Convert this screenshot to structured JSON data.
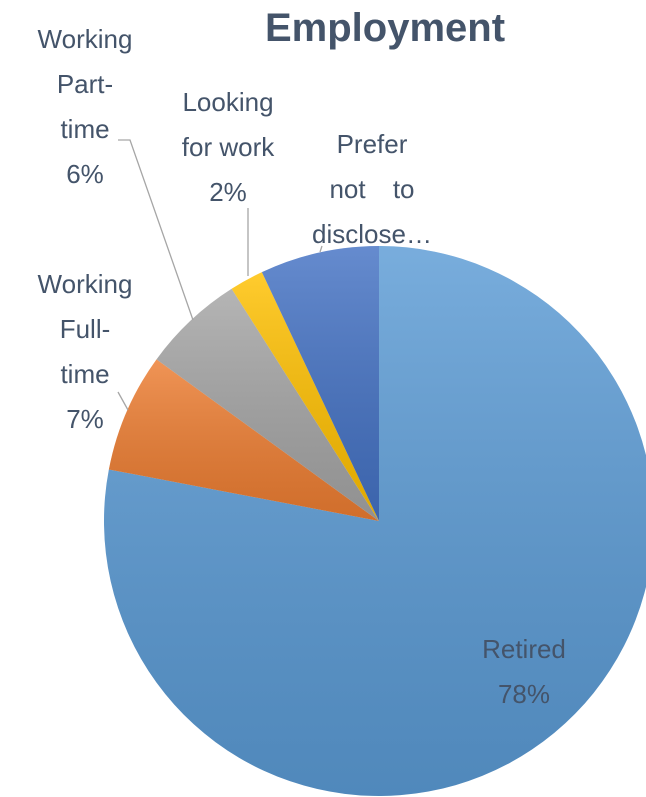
{
  "chart_data": {
    "type": "pie",
    "title": "Employment",
    "categories": [
      "Retired",
      "Working Full-time",
      "Working Part-time",
      "Looking for work",
      "Prefer not to disclose…"
    ],
    "values": [
      78,
      7,
      6,
      2,
      7
    ],
    "value_labels": [
      "78%",
      "7%",
      "6%",
      "2%",
      null
    ],
    "colors": [
      "#5b9bd5",
      "#ed7d31",
      "#a5a5a5",
      "#ffc000",
      "#4472c4"
    ]
  }
}
